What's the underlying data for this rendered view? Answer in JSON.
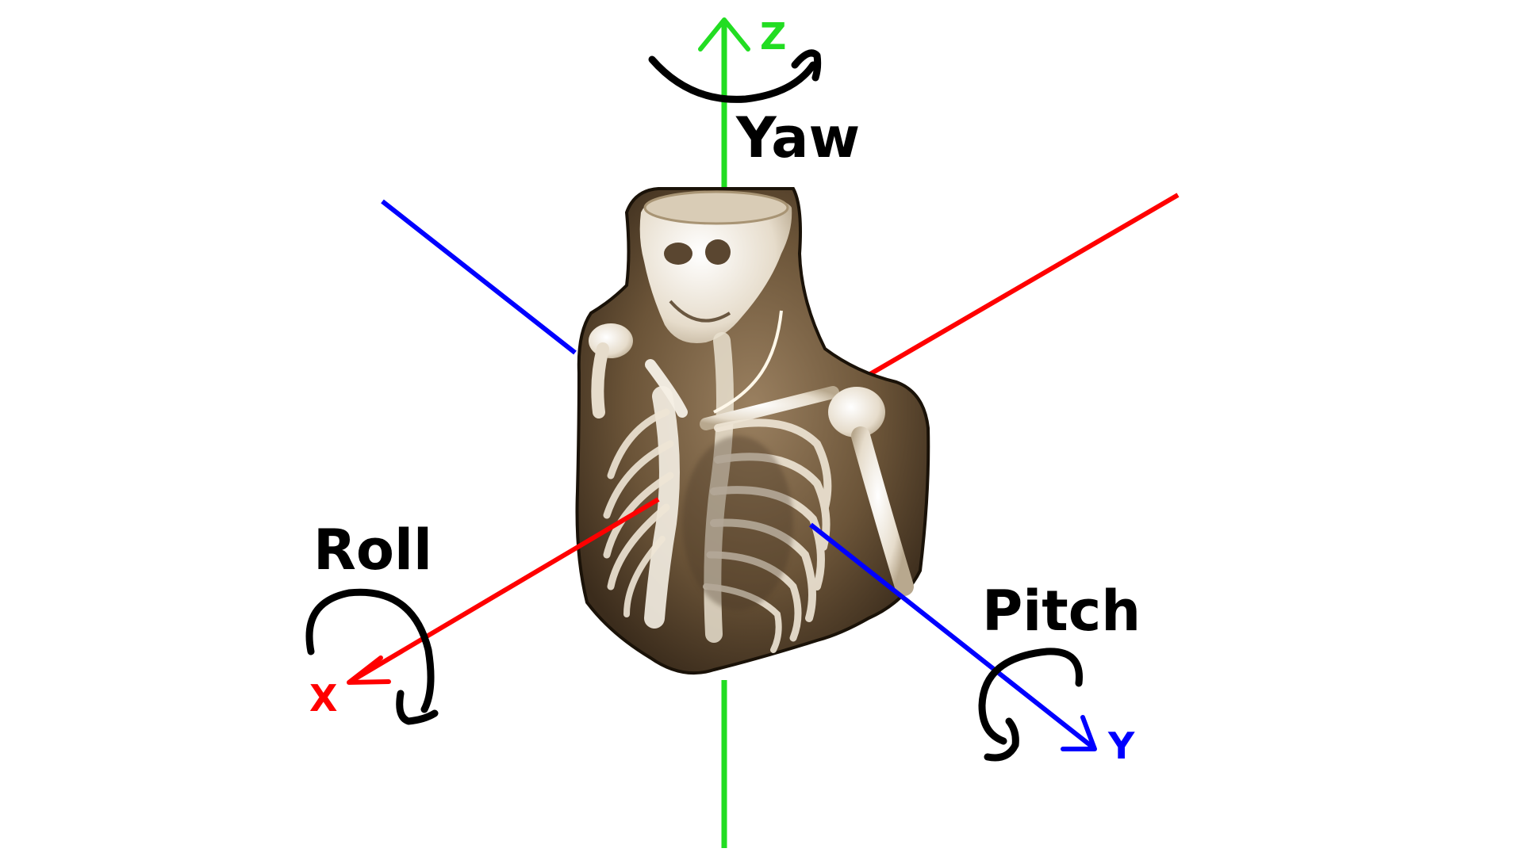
{
  "axes": {
    "x": {
      "label": "X",
      "color": "#ff0000"
    },
    "y": {
      "label": "Y",
      "color": "#0000ff"
    },
    "z": {
      "label": "Z",
      "color": "#22dd22"
    }
  },
  "rotations": {
    "yaw": {
      "label": "Yaw"
    },
    "pitch": {
      "label": "Pitch"
    },
    "roll": {
      "label": "Roll"
    }
  },
  "figure": {
    "subject": "skeleton-torso-ct-render",
    "tissue_color": "#6b5438",
    "bone_color": "#efe9de"
  }
}
